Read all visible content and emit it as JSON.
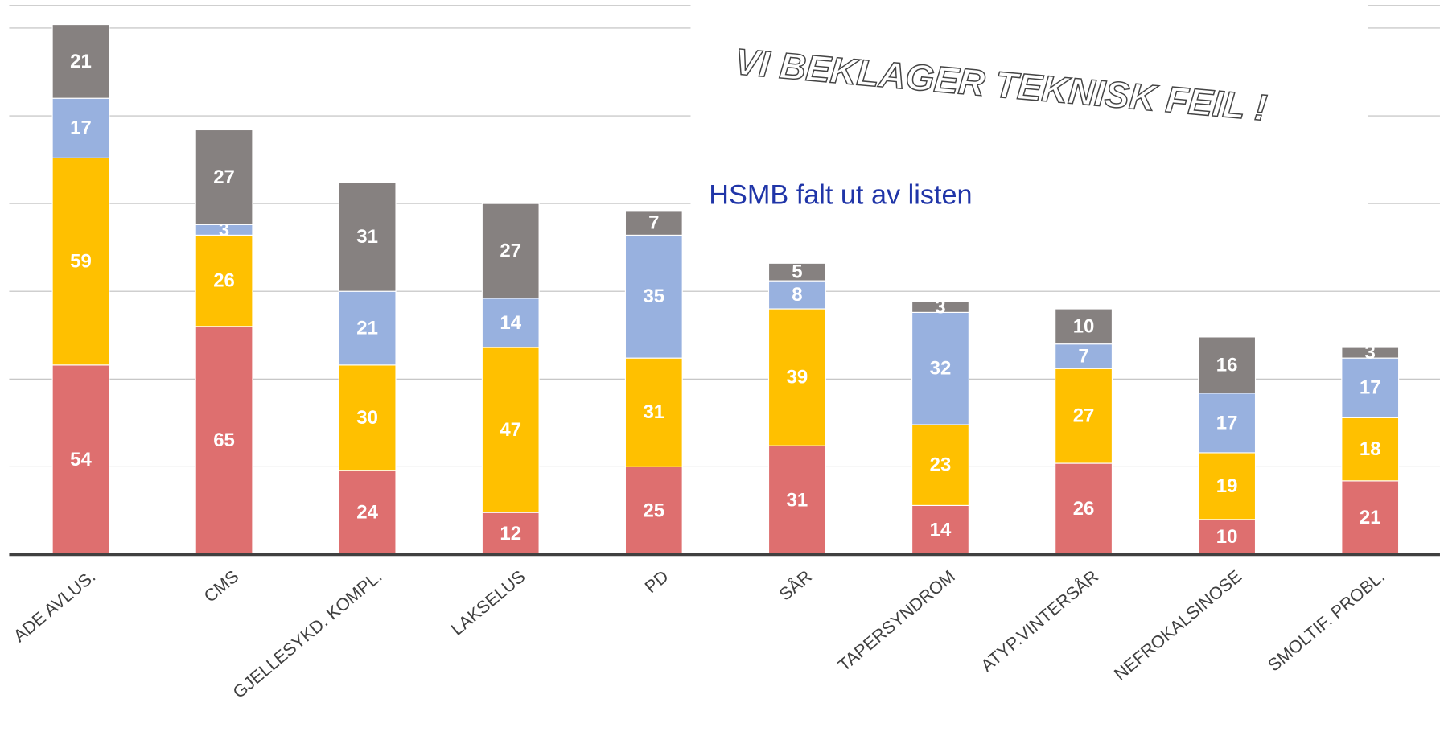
{
  "chart_data": {
    "type": "stacked_bar",
    "categories": [
      "ADE AVLUS.",
      "CMS",
      "GJELLESYKD. KOMPL.",
      "LAKSELUS",
      "PD",
      "SÅR",
      "TAPERSYNDROM",
      "ATYP.VINTERSÅR",
      "NEFROKALSINOSE",
      "SMOLTIF. PROBL."
    ],
    "series": [
      {
        "color": "#de6f6f",
        "values": [
          54,
          65,
          24,
          12,
          25,
          31,
          14,
          26,
          10,
          21
        ]
      },
      {
        "color": "#ffc000",
        "values": [
          59,
          26,
          30,
          47,
          31,
          39,
          23,
          27,
          19,
          18
        ]
      },
      {
        "color": "#98b1df",
        "values": [
          17,
          3,
          21,
          14,
          35,
          8,
          32,
          7,
          17,
          17
        ]
      },
      {
        "color": "#868180",
        "values": [
          21,
          27,
          31,
          27,
          7,
          5,
          3,
          10,
          16,
          3
        ]
      }
    ],
    "ylim": [
      0,
      158
    ],
    "yticks": [
      0,
      25,
      50,
      75,
      100,
      125,
      150
    ],
    "grid": true,
    "annotation": "HSMB falt ut av listen",
    "image_text": "VI BEKLAGER TEKNISK FEIL !"
  }
}
